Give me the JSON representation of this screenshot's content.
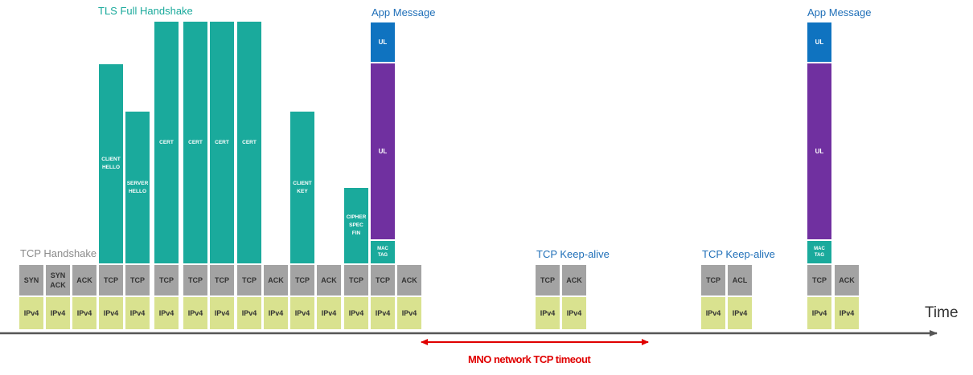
{
  "labels": {
    "tcp_handshake": "TCP Handshake",
    "tls_full_handshake": "TLS Full Handshake",
    "app_message_1": "App Message",
    "tcp_keepalive_1": "TCP Keep-alive",
    "tcp_keepalive_2": "TCP Keep-alive",
    "app_message_2": "App Message",
    "time": "Time",
    "timeout": "MNO network TCP timeout"
  },
  "packets": [
    {
      "id": "syn",
      "proto": "SYN",
      "ip": "IPv4"
    },
    {
      "id": "syn-ack",
      "proto": "SYN\nACK",
      "ip": "IPv4"
    },
    {
      "id": "ack-1",
      "proto": "ACK",
      "ip": "IPv4"
    },
    {
      "id": "client-hello",
      "proto": "TCP",
      "ip": "IPv4",
      "payload": [
        {
          "text": "CLIENT\nHELLO",
          "kind": "teal"
        }
      ]
    },
    {
      "id": "server-hello",
      "proto": "TCP",
      "ip": "IPv4",
      "payload": [
        {
          "text": "SERVER\nHELLO",
          "kind": "teal"
        }
      ]
    },
    {
      "id": "cert-1",
      "proto": "TCP",
      "ip": "IPv4",
      "payload": [
        {
          "text": "CERT",
          "kind": "teal"
        }
      ]
    },
    {
      "id": "cert-2",
      "proto": "TCP",
      "ip": "IPv4",
      "payload": [
        {
          "text": "CERT",
          "kind": "teal"
        }
      ]
    },
    {
      "id": "cert-3",
      "proto": "TCP",
      "ip": "IPv4",
      "payload": [
        {
          "text": "CERT",
          "kind": "teal"
        }
      ]
    },
    {
      "id": "cert-4",
      "proto": "TCP",
      "ip": "IPv4",
      "payload": [
        {
          "text": "CERT",
          "kind": "teal"
        }
      ]
    },
    {
      "id": "ack-2",
      "proto": "ACK",
      "ip": "IPv4"
    },
    {
      "id": "client-key",
      "proto": "TCP",
      "ip": "IPv4",
      "payload": [
        {
          "text": "CLIENT\nKEY",
          "kind": "teal"
        }
      ]
    },
    {
      "id": "ack-3",
      "proto": "ACK",
      "ip": "IPv4"
    },
    {
      "id": "cipher-spec-fin",
      "proto": "TCP",
      "ip": "IPv4",
      "payload": [
        {
          "text": "CIPHER\nSPEC\nFIN",
          "kind": "teal"
        }
      ]
    },
    {
      "id": "app-msg-1",
      "proto": "TCP",
      "ip": "IPv4",
      "payload": [
        {
          "text": "UL",
          "kind": "blue"
        },
        {
          "text": "UL",
          "kind": "purple"
        },
        {
          "text": "MAC\nTAG",
          "kind": "teal-tag"
        }
      ]
    },
    {
      "id": "ack-4",
      "proto": "ACK",
      "ip": "IPv4"
    },
    {
      "id": "keepalive-1-tcp",
      "proto": "TCP",
      "ip": "IPv4"
    },
    {
      "id": "keepalive-1-ack",
      "proto": "ACK",
      "ip": "IPv4"
    },
    {
      "id": "keepalive-2-tcp",
      "proto": "TCP",
      "ip": "IPv4"
    },
    {
      "id": "keepalive-2-acl",
      "proto": "ACL",
      "ip": "IPv4"
    },
    {
      "id": "app-msg-2",
      "proto": "TCP",
      "ip": "IPv4",
      "payload": [
        {
          "text": "UL",
          "kind": "blue"
        },
        {
          "text": "UL",
          "kind": "purple"
        },
        {
          "text": "MAC\nTAG",
          "kind": "teal-tag"
        }
      ]
    },
    {
      "id": "ack-5",
      "proto": "ACK",
      "ip": "IPv4"
    }
  ],
  "colors": {
    "tcp": "#a3a3a3",
    "ipv4": "#d9e28f",
    "tls": "#1aaa9c",
    "app_header": "#0f73c0",
    "app_payload": "#7030a0",
    "timeline": "#555555",
    "timeout": "#e00000"
  }
}
